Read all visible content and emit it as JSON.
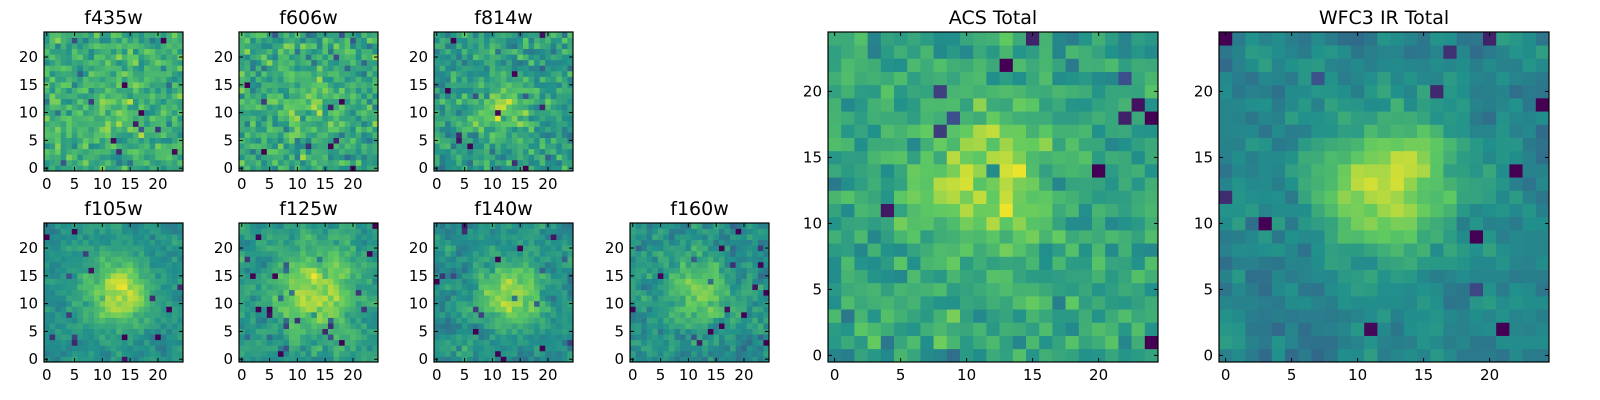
{
  "colormap": {
    "name": "viridis",
    "stops": [
      "#440154",
      "#3b528b",
      "#21918c",
      "#5ec962",
      "#fde725"
    ]
  },
  "chart_data": [
    {
      "type": "heatmap",
      "title": "f435w",
      "grid_size": 25,
      "xlim": [
        0,
        25
      ],
      "ylim": [
        0,
        25
      ],
      "xticks": [
        0,
        5,
        10,
        15,
        20
      ],
      "yticks": [
        0,
        5,
        10,
        15,
        20
      ],
      "xtick_labels": [
        "0",
        "5",
        "10",
        "15",
        "20"
      ],
      "ytick_labels": [
        "0",
        "5",
        "10",
        "15",
        "20"
      ],
      "source_center": [
        12,
        12
      ],
      "source_strength": 0.08,
      "source_sigma": 4,
      "noise": 0.24,
      "smooth": 0,
      "base": 0.62,
      "seed": 11
    },
    {
      "type": "heatmap",
      "title": "f606w",
      "grid_size": 25,
      "xlim": [
        0,
        25
      ],
      "ylim": [
        0,
        25
      ],
      "xticks": [
        0,
        5,
        10,
        15,
        20
      ],
      "yticks": [
        0,
        5,
        10,
        15,
        20
      ],
      "xtick_labels": [
        "0",
        "5",
        "10",
        "15",
        "20"
      ],
      "ytick_labels": [
        "0",
        "5",
        "10",
        "15",
        "20"
      ],
      "source_center": [
        12,
        12
      ],
      "source_strength": 0.1,
      "source_sigma": 4,
      "noise": 0.26,
      "smooth": 0,
      "base": 0.6,
      "seed": 23
    },
    {
      "type": "heatmap",
      "title": "f814w",
      "grid_size": 25,
      "xlim": [
        0,
        25
      ],
      "ylim": [
        0,
        25
      ],
      "xticks": [
        0,
        5,
        10,
        15,
        20
      ],
      "yticks": [
        0,
        5,
        10,
        15,
        20
      ],
      "xtick_labels": [
        "0",
        "5",
        "10",
        "15",
        "20"
      ],
      "ytick_labels": [
        "0",
        "5",
        "10",
        "15",
        "20"
      ],
      "source_center": [
        12,
        11
      ],
      "source_strength": 0.22,
      "source_sigma": 3.5,
      "noise": 0.24,
      "smooth": 0,
      "base": 0.55,
      "seed": 37
    },
    {
      "type": "heatmap",
      "title": "f105w",
      "grid_size": 25,
      "xlim": [
        0,
        25
      ],
      "ylim": [
        0,
        25
      ],
      "xticks": [
        0,
        5,
        10,
        15,
        20
      ],
      "yticks": [
        0,
        5,
        10,
        15,
        20
      ],
      "xtick_labels": [
        "0",
        "5",
        "10",
        "15",
        "20"
      ],
      "ytick_labels": [
        "0",
        "5",
        "10",
        "15",
        "20"
      ],
      "source_center": [
        13,
        12
      ],
      "source_strength": 0.42,
      "source_sigma": 4,
      "noise": 0.2,
      "smooth": 1,
      "base": 0.5,
      "seed": 41
    },
    {
      "type": "heatmap",
      "title": "f125w",
      "grid_size": 25,
      "xlim": [
        0,
        25
      ],
      "ylim": [
        0,
        25
      ],
      "xticks": [
        0,
        5,
        10,
        15,
        20
      ],
      "yticks": [
        0,
        5,
        10,
        15,
        20
      ],
      "xtick_labels": [
        "0",
        "5",
        "10",
        "15",
        "20"
      ],
      "ytick_labels": [
        "0",
        "5",
        "10",
        "15",
        "20"
      ],
      "source_center": [
        13,
        12
      ],
      "source_strength": 0.35,
      "source_sigma": 4.5,
      "noise": 0.26,
      "smooth": 1,
      "base": 0.55,
      "seed": 53
    },
    {
      "type": "heatmap",
      "title": "f140w",
      "grid_size": 25,
      "xlim": [
        0,
        25
      ],
      "ylim": [
        0,
        25
      ],
      "xticks": [
        0,
        5,
        10,
        15,
        20
      ],
      "yticks": [
        0,
        5,
        10,
        15,
        20
      ],
      "xtick_labels": [
        "0",
        "5",
        "10",
        "15",
        "20"
      ],
      "ytick_labels": [
        "0",
        "5",
        "10",
        "15",
        "20"
      ],
      "source_center": [
        13,
        12
      ],
      "source_strength": 0.38,
      "source_sigma": 4,
      "noise": 0.26,
      "smooth": 1,
      "base": 0.5,
      "seed": 67
    },
    {
      "type": "heatmap",
      "title": "f160w",
      "grid_size": 25,
      "xlim": [
        0,
        25
      ],
      "ylim": [
        0,
        25
      ],
      "xticks": [
        0,
        5,
        10,
        15,
        20
      ],
      "yticks": [
        0,
        5,
        10,
        15,
        20
      ],
      "xtick_labels": [
        "0",
        "5",
        "10",
        "15",
        "20"
      ],
      "ytick_labels": [
        "0",
        "5",
        "10",
        "15",
        "20"
      ],
      "source_center": [
        12,
        12
      ],
      "source_strength": 0.28,
      "source_sigma": 4,
      "noise": 0.3,
      "smooth": 1,
      "base": 0.5,
      "seed": 79
    },
    {
      "type": "heatmap",
      "title": "ACS Total",
      "grid_size": 25,
      "xlim": [
        0,
        25
      ],
      "ylim": [
        0,
        25
      ],
      "xticks": [
        0,
        5,
        10,
        15,
        20
      ],
      "yticks": [
        0,
        5,
        10,
        15,
        20
      ],
      "xtick_labels": [
        "0",
        "5",
        "10",
        "15",
        "20"
      ],
      "ytick_labels": [
        "0",
        "5",
        "10",
        "15",
        "20"
      ],
      "source_center": [
        11.5,
        13
      ],
      "source_strength": 0.3,
      "source_sigma": 3.5,
      "noise": 0.2,
      "smooth": 0,
      "base": 0.58,
      "seed": 97
    },
    {
      "type": "heatmap",
      "title": "WFC3 IR Total",
      "grid_size": 25,
      "xlim": [
        0,
        25
      ],
      "ylim": [
        0,
        25
      ],
      "xticks": [
        0,
        5,
        10,
        15,
        20
      ],
      "yticks": [
        0,
        5,
        10,
        15,
        20
      ],
      "xtick_labels": [
        "0",
        "5",
        "10",
        "15",
        "20"
      ],
      "ytick_labels": [
        "0",
        "5",
        "10",
        "15",
        "20"
      ],
      "source_center": [
        12.5,
        13
      ],
      "source_strength": 0.5,
      "source_sigma": 3.5,
      "noise": 0.22,
      "smooth": 1,
      "base": 0.45,
      "seed": 113
    }
  ]
}
